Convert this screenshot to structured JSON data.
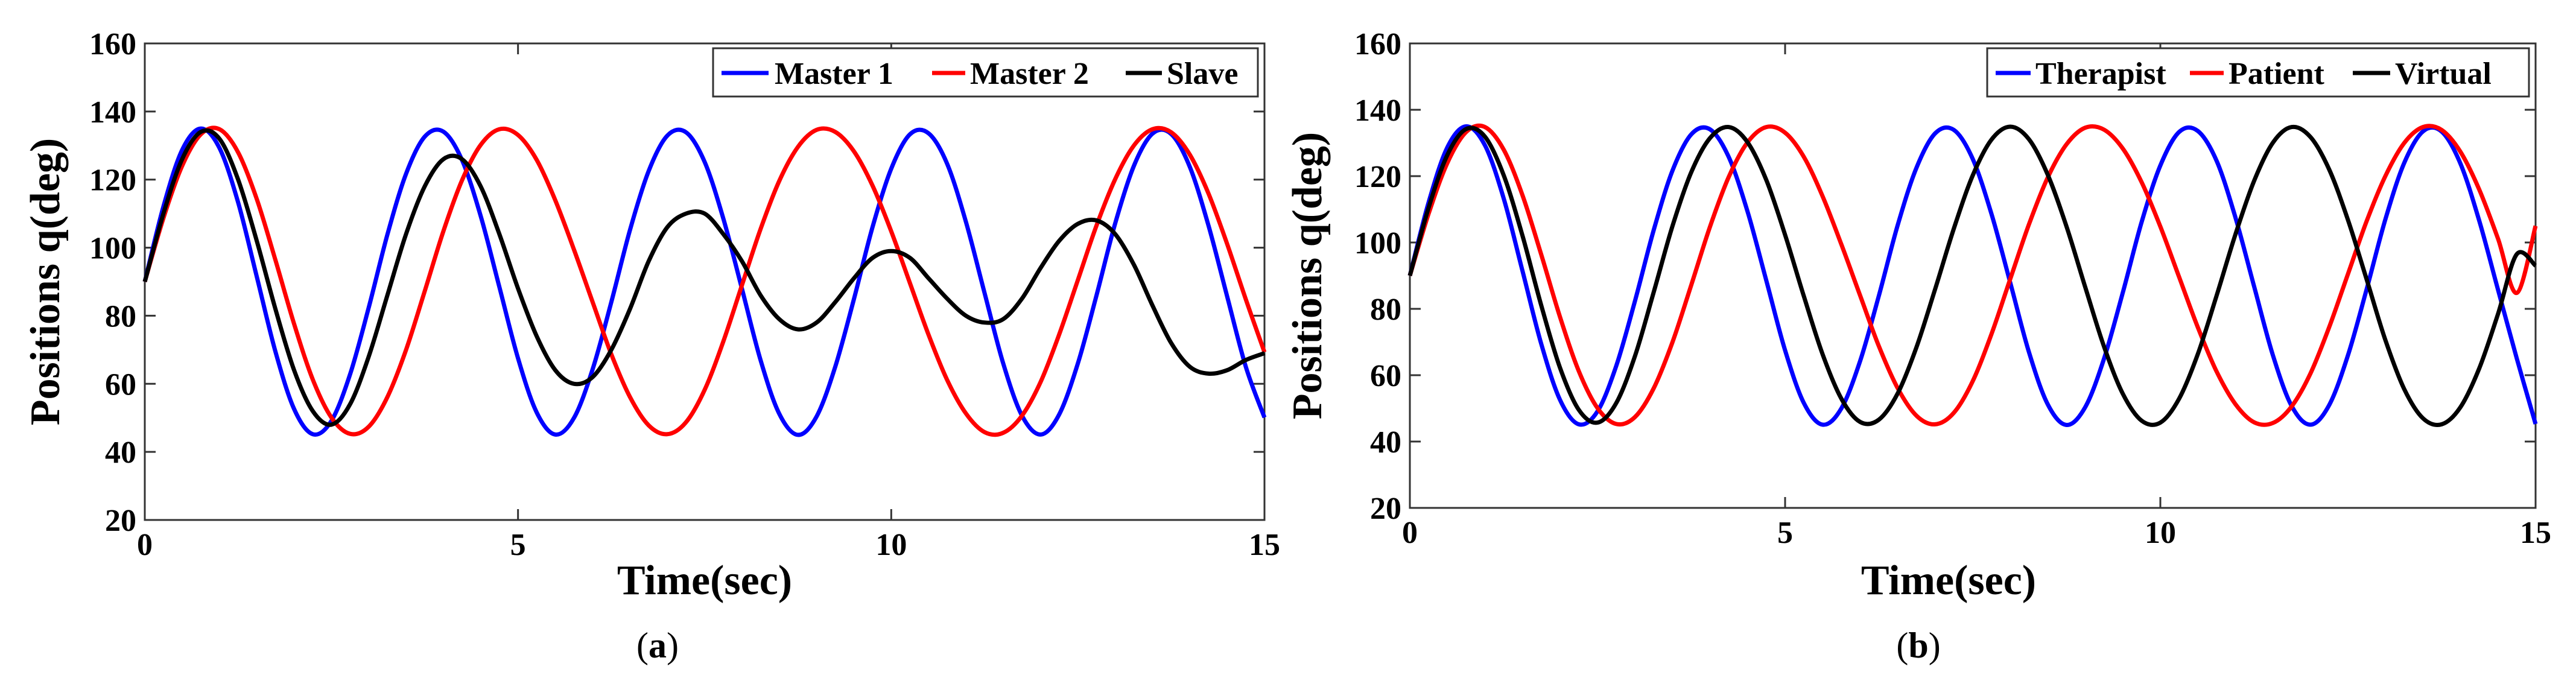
{
  "chart_data": [
    {
      "type": "line",
      "caption_prefix": "(",
      "caption_letter": "a",
      "caption_suffix": ")",
      "xlabel": "Time(sec)",
      "ylabel": "Positions q(deg)",
      "xlim": [
        0,
        15
      ],
      "ylim": [
        20,
        160
      ],
      "xticks": [
        0,
        5,
        10,
        15
      ],
      "yticks": [
        20,
        40,
        60,
        80,
        100,
        120,
        140,
        160
      ],
      "grid": false,
      "legend": "top-right",
      "series": [
        {
          "name": "Master 1",
          "color": "#0000ff",
          "x": [
            0,
            0.25,
            0.5,
            0.75,
            1.0,
            1.25,
            1.5,
            1.75,
            2.0,
            2.25,
            2.5,
            2.75,
            3.0,
            3.25,
            3.5,
            3.75,
            4.0,
            4.25,
            4.5,
            4.75,
            5.0,
            5.25,
            5.5,
            5.75,
            6.0,
            6.25,
            6.5,
            6.75,
            7.0,
            7.25,
            7.5,
            7.75,
            8.0,
            8.25,
            8.5,
            8.75,
            9.0,
            9.25,
            9.5,
            9.75,
            10.0,
            10.25,
            10.5,
            10.75,
            11.0,
            11.25,
            11.5,
            11.75,
            12.0,
            12.25,
            12.5,
            12.75,
            13.0,
            13.25,
            13.5,
            13.75,
            14.0,
            14.25,
            14.5,
            14.75,
            15.0
          ],
          "y": [
            90.0,
            112.1,
            128.7,
            135.0,
            129.3,
            113.3,
            91.5,
            69.5,
            52.6,
            45.2,
            49.1,
            62.8,
            82.4,
            103.8,
            121.7,
            132.6,
            134.1,
            125.7,
            109.3,
            88.5,
            67.5,
            51.6,
            45.1,
            50.0,
            64.3,
            84.0,
            105.2,
            122.5,
            132.9,
            133.9,
            125.2,
            108.6,
            87.9,
            66.9,
            51.2,
            45.0,
            50.4,
            65.0,
            84.9,
            106.1,
            123.2,
            133.3,
            133.6,
            124.6,
            107.6,
            86.7,
            66.0,
            50.7,
            45.1,
            51.0,
            66.0,
            86.0,
            107.1,
            124.0,
            133.5,
            133.4,
            123.7,
            106.5,
            85.7,
            65.0,
            50.1
          ]
        },
        {
          "name": "Master 2",
          "color": "#ff0000",
          "x": [
            0,
            0.25,
            0.5,
            0.75,
            1.0,
            1.25,
            1.5,
            1.75,
            2.0,
            2.25,
            2.5,
            2.75,
            3.0,
            3.25,
            3.5,
            3.75,
            4.0,
            4.25,
            4.5,
            4.75,
            5.0,
            5.25,
            5.5,
            5.75,
            6.0,
            6.25,
            6.5,
            6.75,
            7.0,
            7.25,
            7.5,
            7.75,
            8.0,
            8.25,
            8.5,
            8.75,
            9.0,
            9.25,
            9.5,
            9.75,
            10.0,
            10.25,
            10.5,
            10.75,
            11.0,
            11.25,
            11.5,
            11.75,
            12.0,
            12.25,
            12.5,
            12.75,
            13.0,
            13.25,
            13.5,
            13.75,
            14.0,
            14.25,
            14.5,
            14.75,
            15.0
          ],
          "y": [
            90.0,
            108.7,
            124.0,
            133.3,
            134.8,
            128.0,
            114.3,
            96.4,
            77.6,
            61.3,
            50.1,
            45.3,
            47.4,
            56.1,
            70.0,
            87.2,
            104.8,
            119.8,
            130.2,
            134.8,
            133.1,
            125.8,
            113.9,
            99.4,
            84.0,
            68.7,
            56.1,
            47.8,
            45.2,
            48.7,
            58.2,
            72.4,
            89.0,
            105.5,
            119.6,
            129.6,
            134.6,
            134.0,
            128.3,
            118.2,
            104.8,
            89.6,
            74.4,
            61.1,
            51.3,
            45.8,
            45.6,
            50.6,
            60.5,
            74.5,
            90.5,
            106.5,
            120.1,
            130.0,
            134.8,
            133.9,
            127.3,
            115.9,
            101.1,
            84.8,
            69.3
          ]
        },
        {
          "name": "Slave",
          "color": "#000000",
          "x": [
            0,
            0.25,
            0.5,
            0.75,
            1.0,
            1.25,
            1.5,
            1.75,
            2.0,
            2.25,
            2.5,
            2.75,
            3.0,
            3.25,
            3.5,
            3.75,
            4.0,
            4.25,
            4.5,
            4.75,
            5.0,
            5.25,
            5.5,
            5.75,
            6.0,
            6.25,
            6.5,
            6.75,
            7.0,
            7.25,
            7.5,
            7.75,
            8.0,
            8.25,
            8.5,
            8.75,
            9.0,
            9.25,
            9.5,
            9.75,
            10.0,
            10.25,
            10.5,
            10.75,
            11.0,
            11.25,
            11.5,
            11.75,
            12.0,
            12.25,
            12.5,
            12.75,
            13.0,
            13.25,
            13.5,
            13.75,
            14.0,
            14.25,
            14.5,
            14.75,
            15.0
          ],
          "y": [
            90.0,
            110.0,
            126.0,
            134.0,
            132.0,
            120.0,
            102.0,
            82.0,
            64.0,
            52.0,
            48.0,
            54.0,
            68.0,
            86.0,
            104.0,
            118.0,
            126.0,
            126.0,
            118.0,
            104.0,
            88.0,
            74.0,
            64.0,
            60.0,
            62.0,
            70.0,
            82.0,
            96.0,
            106.0,
            110.0,
            110.0,
            104.0,
            96.0,
            86.0,
            79.0,
            76.0,
            78.0,
            84.0,
            91.0,
            97.0,
            99.0,
            97.0,
            91.0,
            85.0,
            80.0,
            78.0,
            79.0,
            85.0,
            94.0,
            102.0,
            107.0,
            108.0,
            104.0,
            95.0,
            83.0,
            72.0,
            65.0,
            63.0,
            64.0,
            67.0,
            69.0
          ]
        }
      ]
    },
    {
      "type": "line",
      "caption_prefix": "(",
      "caption_letter": "b",
      "caption_suffix": ")",
      "xlabel": "Time(sec)",
      "ylabel": "Positions q(deg)",
      "xlim": [
        0,
        15
      ],
      "ylim": [
        20,
        160
      ],
      "xticks": [
        0,
        5,
        10,
        15
      ],
      "yticks": [
        20,
        40,
        60,
        80,
        100,
        120,
        140,
        160
      ],
      "grid": false,
      "legend": "top-right",
      "series": [
        {
          "name": "Therapist",
          "color": "#0000ff",
          "x": [
            0,
            0.25,
            0.5,
            0.75,
            1.0,
            1.25,
            1.5,
            1.75,
            2.0,
            2.25,
            2.5,
            2.75,
            3.0,
            3.25,
            3.5,
            3.75,
            4.0,
            4.25,
            4.5,
            4.75,
            5.0,
            5.25,
            5.5,
            5.75,
            6.0,
            6.25,
            6.5,
            6.75,
            7.0,
            7.25,
            7.5,
            7.75,
            8.0,
            8.25,
            8.5,
            8.75,
            9.0,
            9.25,
            9.5,
            9.75,
            10.0,
            10.25,
            10.5,
            10.75,
            11.0,
            11.25,
            11.5,
            11.75,
            12.0,
            12.25,
            12.5,
            12.75,
            13.0,
            13.25,
            13.5,
            13.75,
            14.0,
            14.25,
            14.5,
            14.75,
            15.0
          ],
          "y": [
            90.0,
            112.1,
            128.7,
            135.0,
            129.3,
            113.3,
            91.5,
            69.5,
            52.6,
            45.2,
            49.1,
            62.8,
            82.4,
            103.8,
            121.7,
            132.6,
            134.1,
            125.7,
            109.3,
            88.5,
            67.5,
            51.6,
            45.1,
            50.0,
            64.3,
            84.0,
            105.2,
            122.5,
            132.9,
            133.9,
            125.2,
            108.6,
            87.9,
            66.9,
            51.2,
            45.0,
            50.4,
            65.0,
            84.9,
            106.1,
            123.2,
            133.3,
            133.6,
            124.6,
            107.6,
            86.7,
            66.0,
            50.7,
            45.1,
            51.0,
            66.0,
            86.0,
            107.1,
            124.0,
            133.5,
            133.4,
            123.7,
            106.5,
            85.7,
            65.0,
            45.3
          ]
        },
        {
          "name": "Patient",
          "color": "#ff0000",
          "x": [
            0,
            0.25,
            0.5,
            0.75,
            1.0,
            1.25,
            1.5,
            1.75,
            2.0,
            2.25,
            2.5,
            2.75,
            3.0,
            3.25,
            3.5,
            3.75,
            4.0,
            4.25,
            4.5,
            4.75,
            5.0,
            5.25,
            5.5,
            5.75,
            6.0,
            6.25,
            6.5,
            6.75,
            7.0,
            7.25,
            7.5,
            7.75,
            8.0,
            8.25,
            8.5,
            8.75,
            9.0,
            9.25,
            9.5,
            9.75,
            10.0,
            10.25,
            10.5,
            10.75,
            11.0,
            11.25,
            11.5,
            11.75,
            12.0,
            12.25,
            12.5,
            12.75,
            13.0,
            13.25,
            13.5,
            13.75,
            14.0,
            14.25,
            14.5,
            14.75,
            15.0
          ],
          "y": [
            90.0,
            108.7,
            124.0,
            133.3,
            134.8,
            128.0,
            114.3,
            96.4,
            77.6,
            61.3,
            50.1,
            45.3,
            47.4,
            56.1,
            70.0,
            87.2,
            104.8,
            119.8,
            130.2,
            134.8,
            133.1,
            125.8,
            113.9,
            99.4,
            84.0,
            68.7,
            56.1,
            47.8,
            45.2,
            48.7,
            58.2,
            72.4,
            89.0,
            105.5,
            119.6,
            129.6,
            134.6,
            134.0,
            128.3,
            118.2,
            104.8,
            89.6,
            74.4,
            61.1,
            51.3,
            45.8,
            45.6,
            50.6,
            60.5,
            74.5,
            90.5,
            106.5,
            120.1,
            130.0,
            134.8,
            133.9,
            127.3,
            115.9,
            101.1,
            84.8,
            105.0
          ]
        },
        {
          "name": "Virtual",
          "color": "#000000",
          "x": [
            0,
            0.25,
            0.5,
            0.75,
            1.0,
            1.25,
            1.5,
            1.75,
            2.0,
            2.25,
            2.5,
            2.75,
            3.0,
            3.25,
            3.5,
            3.75,
            4.0,
            4.25,
            4.5,
            4.75,
            5.0,
            5.25,
            5.5,
            5.75,
            6.0,
            6.25,
            6.5,
            6.75,
            7.0,
            7.25,
            7.5,
            7.75,
            8.0,
            8.25,
            8.5,
            8.75,
            9.0,
            9.25,
            9.5,
            9.75,
            10.0,
            10.25,
            10.5,
            10.75,
            11.0,
            11.25,
            11.5,
            11.75,
            12.0,
            12.25,
            12.5,
            12.75,
            13.0,
            13.25,
            13.5,
            13.75,
            14.0,
            14.25,
            14.5,
            14.75,
            15.0
          ],
          "y": [
            90.0,
            110.5,
            126.4,
            134.2,
            131.9,
            120.3,
            102.1,
            81.1,
            62.3,
            49.6,
            45.7,
            51.6,
            65.8,
            85.1,
            105.0,
            121.2,
            131.5,
            134.8,
            130.2,
            118.8,
            102.3,
            83.8,
            66.3,
            52.9,
            45.9,
            46.6,
            54.5,
            68.4,
            86.0,
            104.3,
            120.2,
            131.0,
            134.9,
            131.1,
            120.4,
            104.8,
            86.5,
            68.6,
            54.4,
            46.3,
            45.7,
            52.9,
            66.4,
            84.0,
            102.4,
            118.6,
            130.1,
            134.8,
            131.8,
            122.0,
            106.8,
            88.8,
            70.5,
            55.8,
            47.0,
            45.2,
            50.4,
            62.1,
            78.5,
            96.5,
            93.0
          ]
        }
      ]
    }
  ]
}
